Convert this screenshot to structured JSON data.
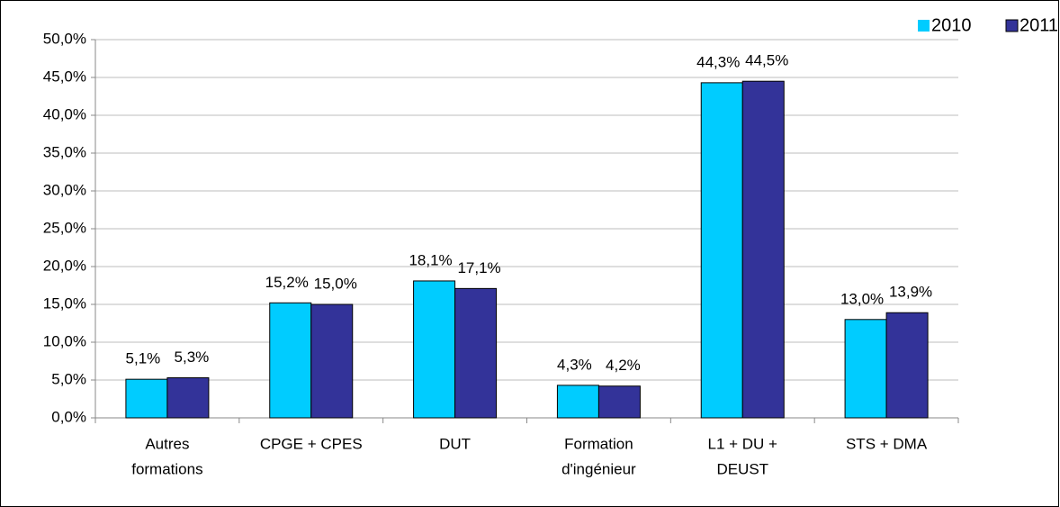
{
  "chart_data": {
    "type": "bar",
    "categories": [
      [
        "Autres",
        "formations"
      ],
      [
        "CPGE + CPES"
      ],
      [
        "DUT"
      ],
      [
        "Formation",
        "d'ingénieur"
      ],
      [
        "L1 + DU +",
        "DEUST"
      ],
      [
        "STS + DMA"
      ]
    ],
    "series": [
      {
        "name": "2010",
        "color": "#00ccff",
        "values": [
          5.1,
          15.2,
          18.1,
          4.3,
          44.3,
          13.0
        ],
        "value_labels": [
          "5,1%",
          "15,2%",
          "18,1%",
          "4,3%",
          "44,3%",
          "13,0%"
        ]
      },
      {
        "name": "2011",
        "color": "#333399",
        "values": [
          5.3,
          15.0,
          17.1,
          4.2,
          44.5,
          13.9
        ],
        "value_labels": [
          "5,3%",
          "15,0%",
          "17,1%",
          "4,2%",
          "44,5%",
          "13,9%"
        ]
      }
    ],
    "ylim": [
      0,
      50
    ],
    "yticks": [
      {
        "value": 0,
        "label": "0,0%"
      },
      {
        "value": 5,
        "label": "5,0%"
      },
      {
        "value": 10,
        "label": "10,0%"
      },
      {
        "value": 15,
        "label": "15,0%"
      },
      {
        "value": 20,
        "label": "20,0%"
      },
      {
        "value": 25,
        "label": "25,0%"
      },
      {
        "value": 30,
        "label": "30,0%"
      },
      {
        "value": 35,
        "label": "35,0%"
      },
      {
        "value": 40,
        "label": "40,0%"
      },
      {
        "value": 45,
        "label": "45,0%"
      },
      {
        "value": 50,
        "label": "50,0%"
      }
    ],
    "grid": true,
    "legend": "top-right"
  }
}
